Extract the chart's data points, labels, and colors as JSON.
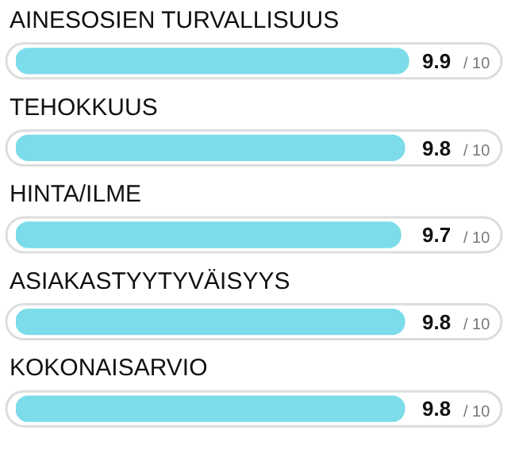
{
  "chart_data": {
    "type": "bar",
    "orientation": "horizontal",
    "categories": [
      "AINESOSIEN TURVALLISUUS",
      "TEHOKKUUS",
      "HINTA/ILME",
      "ASIAKASTYYTYVÄISYYS",
      "KOKONAISARVIO"
    ],
    "values": [
      9.9,
      9.8,
      9.7,
      9.8,
      9.8
    ],
    "data_labels": true,
    "annotations": [
      "/ 10",
      "/ 10",
      "/ 10",
      "/ 10",
      "/ 10"
    ],
    "xlim": [
      0,
      10
    ],
    "tick_labels": false,
    "color": "#7cdcea",
    "legend": false
  }
}
